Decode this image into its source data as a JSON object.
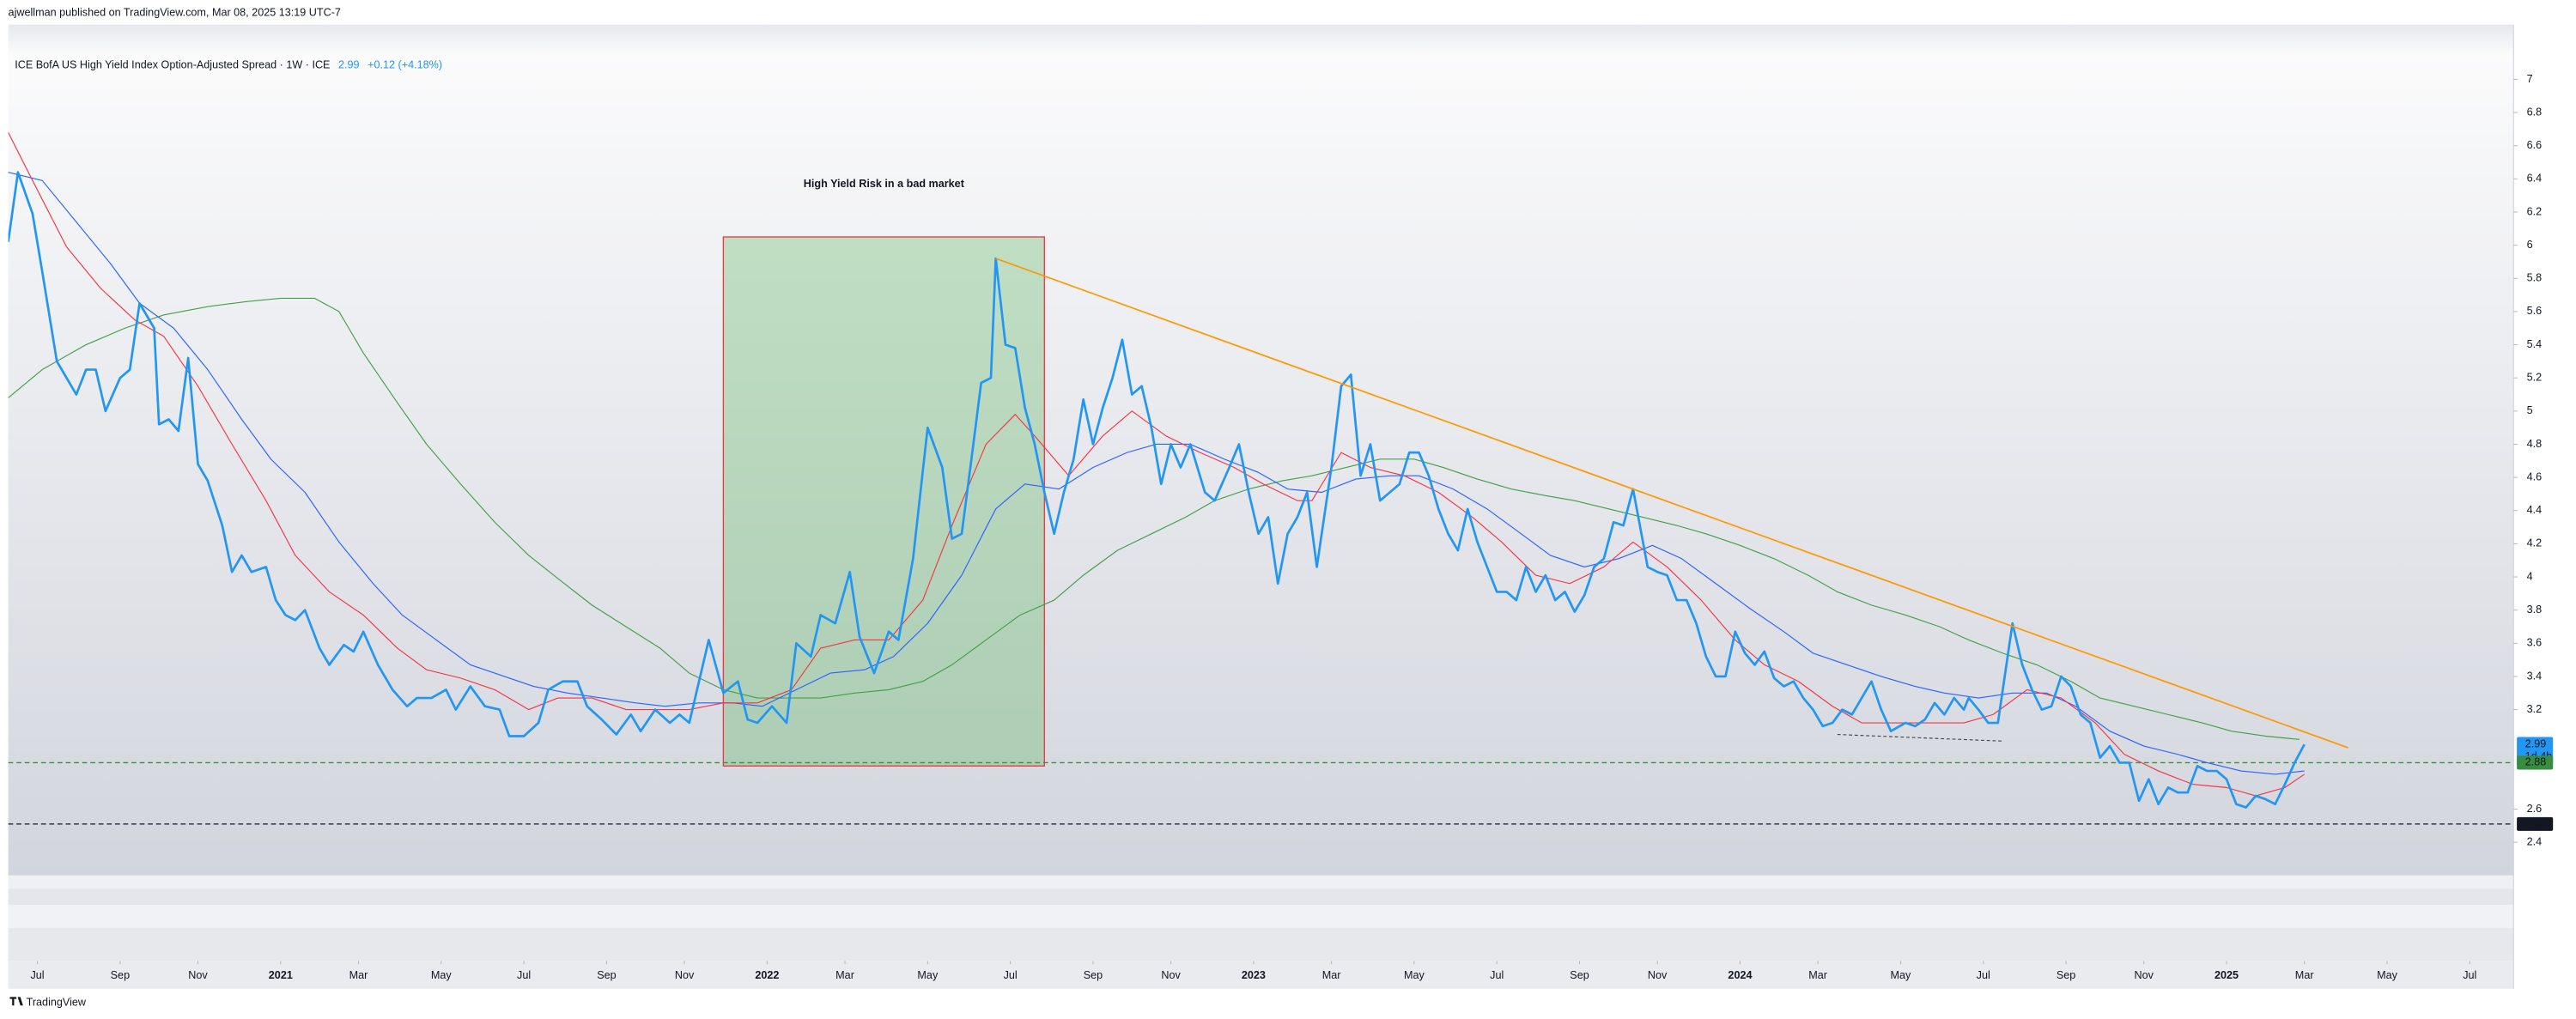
{
  "header": {
    "byline": "ajwellman published on TradingView.com, Mar 08, 2025 13:19 UTC-7"
  },
  "footer": {
    "brand": "TradingView"
  },
  "chart_data": {
    "type": "line",
    "title": "ICE BofA US High Yield Index Option-Adjusted Spread · 1W · ICE",
    "last": 2.99,
    "change": "+0.12 (+4.18%)",
    "countdown": "1d 4h",
    "grid": false,
    "xlim": [
      2020.44,
      2025.59
    ],
    "ylim": [
      2.2,
      7.33
    ],
    "xticks": [
      {
        "value": 2020.5,
        "label": "Jul"
      },
      {
        "value": 2020.67,
        "label": "Sep"
      },
      {
        "value": 2020.83,
        "label": "Nov"
      },
      2021,
      {
        "value": 2021.16,
        "label": "Mar"
      },
      {
        "value": 2021.33,
        "label": "May"
      },
      {
        "value": 2021.5,
        "label": "Jul"
      },
      {
        "value": 2021.67,
        "label": "Sep"
      },
      {
        "value": 2021.83,
        "label": "Nov"
      },
      2022,
      {
        "value": 2022.16,
        "label": "Mar"
      },
      {
        "value": 2022.33,
        "label": "May"
      },
      {
        "value": 2022.5,
        "label": "Jul"
      },
      {
        "value": 2022.67,
        "label": "Sep"
      },
      {
        "value": 2022.83,
        "label": "Nov"
      },
      2023,
      {
        "value": 2023.16,
        "label": "Mar"
      },
      {
        "value": 2023.33,
        "label": "May"
      },
      {
        "value": 2023.5,
        "label": "Jul"
      },
      {
        "value": 2023.67,
        "label": "Sep"
      },
      {
        "value": 2023.83,
        "label": "Nov"
      },
      2024,
      {
        "value": 2024.16,
        "label": "Mar"
      },
      {
        "value": 2024.33,
        "label": "May"
      },
      {
        "value": 2024.5,
        "label": "Jul"
      },
      {
        "value": 2024.67,
        "label": "Sep"
      },
      {
        "value": 2024.83,
        "label": "Nov"
      },
      2025,
      {
        "value": 2025.16,
        "label": "Mar"
      },
      {
        "value": 2025.33,
        "label": "May"
      },
      {
        "value": 2025.5,
        "label": "Jul"
      }
    ],
    "yticks": [
      2.4,
      2.6,
      3.2,
      3.4,
      3.6,
      3.8,
      4,
      4.2,
      4.4,
      4.6,
      4.8,
      5,
      5.2,
      5.4,
      5.6,
      5.8,
      6,
      6.2,
      6.4,
      6.6,
      6.8,
      7
    ],
    "series": [
      {
        "color": "#2196f3",
        "width": 1.4,
        "x": [
          2020.44,
          2020.46,
          2020.49,
          2020.51,
          2020.54,
          2020.58,
          2020.6,
          2020.62,
          2020.64,
          2020.67,
          2020.69,
          2020.71,
          2020.74,
          2020.75,
          2020.77,
          2020.79,
          2020.81,
          2020.83,
          2020.85,
          2020.88,
          2020.9,
          2020.92,
          2020.94,
          2020.97,
          2020.99,
          2021.01,
          2021.03,
          2021.05,
          2021.08,
          2021.1,
          2021.13,
          2021.15,
          2021.17,
          2021.2,
          2021.23,
          2021.26,
          2021.28,
          2021.31,
          2021.34,
          2021.36,
          2021.39,
          2021.42,
          2021.45,
          2021.47,
          2021.5,
          2021.53,
          2021.55,
          2021.58,
          2021.61,
          2021.63,
          2021.66,
          2021.69,
          2021.72,
          2021.74,
          2021.77,
          2021.8,
          2021.82,
          2021.84,
          2021.86,
          2021.88,
          2021.91,
          2021.94,
          2021.96,
          2021.98,
          2022.01,
          2022.04,
          2022.06,
          2022.09,
          2022.11,
          2022.14,
          2022.17,
          2022.19,
          2022.22,
          2022.25,
          2022.27,
          2022.3,
          2022.33,
          2022.36,
          2022.38,
          2022.4,
          2022.42,
          2022.44,
          2022.46,
          2022.47,
          2022.49,
          2022.51,
          2022.53,
          2022.55,
          2022.57,
          2022.59,
          2022.61,
          2022.63,
          2022.65,
          2022.67,
          2022.69,
          2022.71,
          2022.73,
          2022.75,
          2022.77,
          2022.79,
          2022.81,
          2022.83,
          2022.85,
          2022.87,
          2022.9,
          2022.92,
          2022.95,
          2022.97,
          2022.99,
          2023.01,
          2023.03,
          2023.05,
          2023.07,
          2023.09,
          2023.11,
          2023.13,
          2023.16,
          2023.18,
          2023.2,
          2023.22,
          2023.24,
          2023.26,
          2023.28,
          2023.3,
          2023.32,
          2023.34,
          2023.36,
          2023.38,
          2023.4,
          2023.42,
          2023.44,
          2023.46,
          2023.48,
          2023.5,
          2023.52,
          2023.54,
          2023.56,
          2023.58,
          2023.6,
          2023.62,
          2023.64,
          2023.66,
          2023.68,
          2023.7,
          2023.72,
          2023.74,
          2023.76,
          2023.78,
          2023.81,
          2023.83,
          2023.85,
          2023.87,
          2023.89,
          2023.91,
          2023.93,
          2023.95,
          2023.97,
          2023.99,
          2024.01,
          2024.03,
          2024.05,
          2024.07,
          2024.09,
          2024.11,
          2024.13,
          2024.15,
          2024.17,
          2024.19,
          2024.21,
          2024.23,
          2024.25,
          2024.27,
          2024.29,
          2024.31,
          2024.34,
          2024.36,
          2024.38,
          2024.4,
          2024.42,
          2024.44,
          2024.46,
          2024.47,
          2024.49,
          2024.51,
          2024.53,
          2024.56,
          2024.58,
          2024.6,
          2024.62,
          2024.64,
          2024.66,
          2024.68,
          2024.7,
          2024.72,
          2024.74,
          2024.76,
          2024.78,
          2024.8,
          2024.82,
          2024.84,
          2024.86,
          2024.88,
          2024.9,
          2024.92,
          2024.94,
          2024.96,
          2024.98,
          2025.0,
          2025.02,
          2025.04,
          2025.06,
          2025.08,
          2025.1,
          2025.12,
          2025.14,
          2025.16
        ],
        "values": [
          6.02,
          6.44,
          6.19,
          5.84,
          5.3,
          5.1,
          5.25,
          5.25,
          5.0,
          5.2,
          5.25,
          5.65,
          5.5,
          4.92,
          4.95,
          4.88,
          5.32,
          4.68,
          4.58,
          4.31,
          4.03,
          4.13,
          4.03,
          4.06,
          3.86,
          3.77,
          3.74,
          3.8,
          3.57,
          3.47,
          3.59,
          3.55,
          3.67,
          3.47,
          3.32,
          3.22,
          3.27,
          3.27,
          3.32,
          3.2,
          3.34,
          3.22,
          3.2,
          3.04,
          3.04,
          3.12,
          3.32,
          3.37,
          3.37,
          3.22,
          3.14,
          3.05,
          3.17,
          3.07,
          3.2,
          3.12,
          3.17,
          3.12,
          3.37,
          3.62,
          3.3,
          3.37,
          3.14,
          3.12,
          3.22,
          3.12,
          3.6,
          3.52,
          3.77,
          3.72,
          4.03,
          3.64,
          3.42,
          3.67,
          3.62,
          4.11,
          4.9,
          4.66,
          4.23,
          4.26,
          4.71,
          5.17,
          5.2,
          5.92,
          5.4,
          5.38,
          5.02,
          4.8,
          4.51,
          4.26,
          4.51,
          4.71,
          5.07,
          4.8,
          5.02,
          5.2,
          5.43,
          5.1,
          5.15,
          4.9,
          4.56,
          4.8,
          4.66,
          4.8,
          4.51,
          4.46,
          4.66,
          4.8,
          4.51,
          4.26,
          4.36,
          3.96,
          4.26,
          4.36,
          4.51,
          4.06,
          4.66,
          5.15,
          5.22,
          4.61,
          4.8,
          4.46,
          4.51,
          4.56,
          4.75,
          4.75,
          4.61,
          4.41,
          4.26,
          4.16,
          4.41,
          4.21,
          4.06,
          3.91,
          3.91,
          3.86,
          4.06,
          3.91,
          4.01,
          3.86,
          3.91,
          3.79,
          3.89,
          4.06,
          4.11,
          4.33,
          4.31,
          4.53,
          4.06,
          4.03,
          4.01,
          3.86,
          3.86,
          3.72,
          3.52,
          3.4,
          3.4,
          3.67,
          3.54,
          3.47,
          3.55,
          3.39,
          3.34,
          3.37,
          3.27,
          3.2,
          3.1,
          3.12,
          3.2,
          3.17,
          3.27,
          3.37,
          3.2,
          3.07,
          3.12,
          3.1,
          3.14,
          3.24,
          3.17,
          3.27,
          3.2,
          3.27,
          3.2,
          3.12,
          3.12,
          3.72,
          3.47,
          3.32,
          3.2,
          3.22,
          3.4,
          3.34,
          3.17,
          3.12,
          2.91,
          2.98,
          2.88,
          2.88,
          2.65,
          2.78,
          2.63,
          2.73,
          2.7,
          2.7,
          2.86,
          2.83,
          2.83,
          2.78,
          2.63,
          2.61,
          2.68,
          2.66,
          2.63,
          2.75,
          2.88,
          2.99
        ]
      },
      {
        "color": "#f23645",
        "width": 0.6,
        "x": [
          2020.44,
          2020.49,
          2020.56,
          2020.63,
          2020.7,
          2020.76,
          2020.83,
          2020.9,
          2020.97,
          2021.03,
          2021.1,
          2021.17,
          2021.24,
          2021.3,
          2021.37,
          2021.44,
          2021.51,
          2021.57,
          2021.64,
          2021.71,
          2021.78,
          2021.84,
          2021.91,
          2021.98,
          2022.05,
          2022.11,
          2022.18,
          2022.25,
          2022.32,
          2022.38,
          2022.45,
          2022.51,
          2022.55,
          2022.62,
          2022.69,
          2022.75,
          2022.82,
          2022.89,
          2022.96,
          2023.02,
          2023.09,
          2023.12,
          2023.18,
          2023.24,
          2023.31,
          2023.38,
          2023.45,
          2023.51,
          2023.58,
          2023.65,
          2023.72,
          2023.78,
          2023.85,
          2023.92,
          2023.99,
          2024.05,
          2024.12,
          2024.19,
          2024.25,
          2024.32,
          2024.39,
          2024.46,
          2024.52,
          2024.59,
          2024.66,
          2024.73,
          2024.79,
          2024.86,
          2024.93,
          2025.0,
          2025.06,
          2025.12,
          2025.16
        ],
        "values": [
          6.68,
          6.39,
          5.99,
          5.74,
          5.55,
          5.45,
          5.15,
          4.8,
          4.46,
          4.13,
          3.91,
          3.77,
          3.57,
          3.44,
          3.39,
          3.32,
          3.2,
          3.27,
          3.27,
          3.2,
          3.2,
          3.2,
          3.24,
          3.24,
          3.32,
          3.57,
          3.62,
          3.62,
          3.86,
          4.31,
          4.8,
          4.98,
          4.85,
          4.61,
          4.85,
          5.0,
          4.85,
          4.75,
          4.66,
          4.56,
          4.46,
          4.46,
          4.75,
          4.66,
          4.61,
          4.51,
          4.36,
          4.21,
          4.01,
          3.96,
          4.06,
          4.21,
          4.06,
          3.86,
          3.62,
          3.47,
          3.37,
          3.22,
          3.12,
          3.12,
          3.12,
          3.12,
          3.17,
          3.32,
          3.27,
          3.12,
          2.93,
          2.83,
          2.75,
          2.73,
          2.68,
          2.73,
          2.81
        ]
      },
      {
        "color": "#2962ff",
        "width": 0.6,
        "x": [
          2020.44,
          2020.51,
          2020.58,
          2020.65,
          2020.71,
          2020.78,
          2020.85,
          2020.92,
          2020.98,
          2021.05,
          2021.12,
          2021.19,
          2021.25,
          2021.32,
          2021.39,
          2021.46,
          2021.52,
          2021.59,
          2021.66,
          2021.73,
          2021.79,
          2021.86,
          2021.93,
          2021.99,
          2022.06,
          2022.13,
          2022.2,
          2022.26,
          2022.33,
          2022.4,
          2022.47,
          2022.53,
          2022.6,
          2022.67,
          2022.74,
          2022.8,
          2022.87,
          2022.94,
          2023.01,
          2023.07,
          2023.14,
          2023.21,
          2023.28,
          2023.34,
          2023.41,
          2023.48,
          2023.55,
          2023.61,
          2023.68,
          2023.75,
          2023.82,
          2023.88,
          2023.95,
          2024.02,
          2024.09,
          2024.15,
          2024.22,
          2024.29,
          2024.36,
          2024.42,
          2024.49,
          2024.56,
          2024.63,
          2024.69,
          2024.76,
          2024.83,
          2024.9,
          2024.96,
          2025.03,
          2025.1,
          2025.16
        ],
        "values": [
          6.44,
          6.39,
          6.14,
          5.89,
          5.65,
          5.5,
          5.25,
          4.95,
          4.71,
          4.51,
          4.21,
          3.96,
          3.77,
          3.62,
          3.47,
          3.4,
          3.34,
          3.3,
          3.27,
          3.24,
          3.22,
          3.24,
          3.24,
          3.22,
          3.32,
          3.42,
          3.44,
          3.52,
          3.72,
          4.01,
          4.41,
          4.56,
          4.53,
          4.66,
          4.75,
          4.8,
          4.8,
          4.71,
          4.63,
          4.53,
          4.51,
          4.59,
          4.61,
          4.61,
          4.53,
          4.41,
          4.26,
          4.13,
          4.06,
          4.11,
          4.19,
          4.11,
          3.96,
          3.81,
          3.67,
          3.54,
          3.47,
          3.4,
          3.34,
          3.3,
          3.27,
          3.3,
          3.3,
          3.22,
          3.07,
          2.98,
          2.93,
          2.88,
          2.83,
          2.81,
          2.83
        ]
      },
      {
        "color": "#43a047",
        "width": 0.6,
        "x": [
          2020.44,
          2020.51,
          2020.6,
          2020.68,
          2020.76,
          2020.85,
          2020.93,
          2021.0,
          2021.07,
          2021.12,
          2021.17,
          2021.24,
          2021.3,
          2021.37,
          2021.44,
          2021.51,
          2021.57,
          2021.64,
          2021.71,
          2021.78,
          2021.84,
          2021.91,
          2021.98,
          2022.05,
          2022.11,
          2022.18,
          2022.25,
          2022.32,
          2022.38,
          2022.45,
          2022.52,
          2022.59,
          2022.65,
          2022.72,
          2022.79,
          2022.86,
          2022.92,
          2022.99,
          2023.06,
          2023.12,
          2023.19,
          2023.26,
          2023.33,
          2023.39,
          2023.46,
          2023.53,
          2023.6,
          2023.66,
          2023.73,
          2023.8,
          2023.87,
          2023.93,
          2024.0,
          2024.07,
          2024.14,
          2024.2,
          2024.27,
          2024.34,
          2024.41,
          2024.47,
          2024.54,
          2024.61,
          2024.68,
          2024.74,
          2024.81,
          2024.88,
          2024.95,
          2025.01,
          2025.08,
          2025.15
        ],
        "values": [
          5.08,
          5.25,
          5.4,
          5.5,
          5.58,
          5.63,
          5.66,
          5.68,
          5.68,
          5.6,
          5.35,
          5.05,
          4.8,
          4.56,
          4.33,
          4.13,
          3.99,
          3.83,
          3.7,
          3.57,
          3.42,
          3.32,
          3.27,
          3.27,
          3.27,
          3.3,
          3.32,
          3.37,
          3.47,
          3.62,
          3.77,
          3.86,
          4.01,
          4.16,
          4.26,
          4.36,
          4.46,
          4.53,
          4.58,
          4.61,
          4.66,
          4.71,
          4.71,
          4.66,
          4.59,
          4.53,
          4.49,
          4.46,
          4.41,
          4.36,
          4.31,
          4.26,
          4.19,
          4.11,
          4.01,
          3.91,
          3.83,
          3.77,
          3.7,
          3.62,
          3.54,
          3.47,
          3.37,
          3.27,
          3.22,
          3.17,
          3.12,
          3.07,
          3.04,
          3.02
        ]
      }
    ],
    "hlines": [
      {
        "value": 2.88,
        "color": "#388e3c"
      },
      {
        "value": 2.51,
        "color": "#131722"
      }
    ],
    "trendlines": [
      {
        "x": [
          2022.47,
          2025.25
        ],
        "values": [
          5.92,
          2.97
        ],
        "color": "#ff9800",
        "dashed": false
      },
      {
        "x": [
          2024.2,
          2024.54
        ],
        "values": [
          3.05,
          3.01
        ],
        "color": "#434651",
        "dashed": true
      }
    ],
    "box": {
      "x": [
        2021.91,
        2022.57
      ],
      "values": [
        6.05,
        2.86
      ],
      "fill": "#4caf50",
      "border": "#f23645",
      "label_color": "#b2242f",
      "label": "High Yield Risk in a bad market"
    }
  }
}
